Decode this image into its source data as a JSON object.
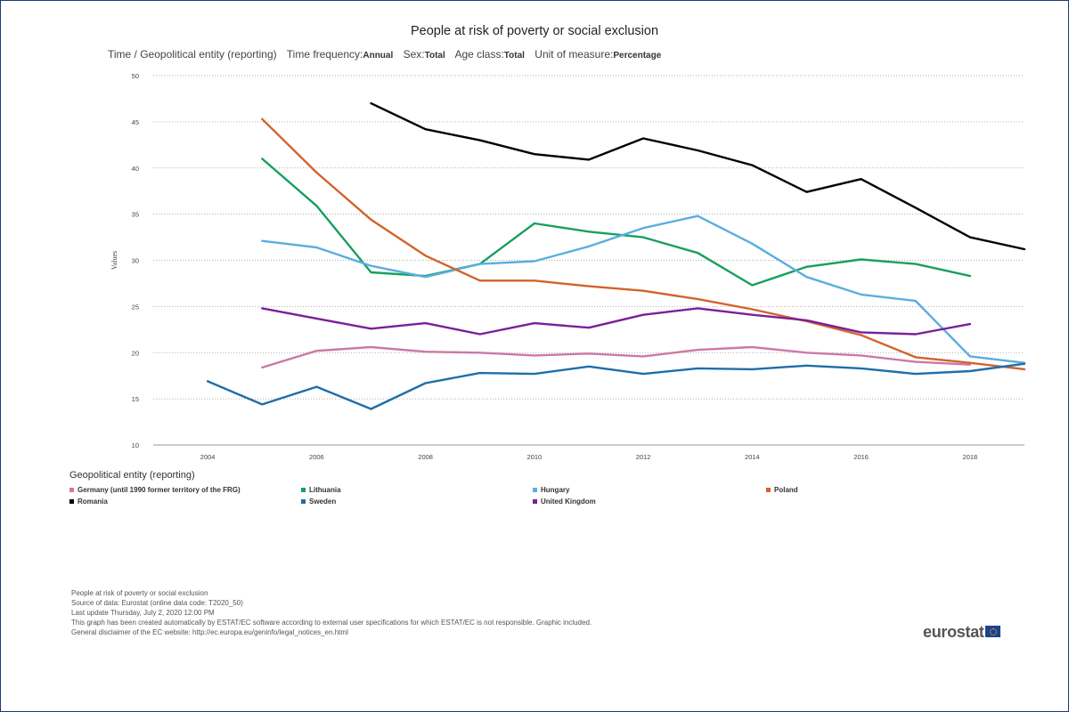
{
  "header": {
    "title": "People at risk of poverty or social exclusion",
    "dims": [
      {
        "label": "Time / Geopolitical entity (reporting)",
        "value": ""
      },
      {
        "label": "Time frequency:",
        "value": "Annual"
      },
      {
        "label": "Sex:",
        "value": "Total"
      },
      {
        "label": "Age class:",
        "value": "Total"
      },
      {
        "label": "Unit of measure:",
        "value": "Percentage"
      }
    ]
  },
  "chart_data": {
    "type": "line",
    "title": "People at risk of poverty or social exclusion",
    "xlabel": "",
    "ylabel": "Values",
    "xlim": [
      2003,
      2019
    ],
    "ylim": [
      10,
      50
    ],
    "yticks": [
      10,
      15,
      20,
      25,
      30,
      35,
      40,
      45,
      50
    ],
    "xticks": [
      2004,
      2006,
      2008,
      2010,
      2012,
      2014,
      2016,
      2018
    ],
    "grid": "horizontal dotted",
    "legend_position": "bottom",
    "legend_title": "Geopolitical entity (reporting)",
    "x": [
      2004,
      2005,
      2006,
      2007,
      2008,
      2009,
      2010,
      2011,
      2012,
      2013,
      2014,
      2015,
      2016,
      2017,
      2018,
      2019
    ],
    "series": [
      {
        "name": "Germany (until 1990 former territory of the FRG)",
        "color": "#cc79a7",
        "values": [
          null,
          18.4,
          20.2,
          20.6,
          20.1,
          20.0,
          19.7,
          19.9,
          19.6,
          20.3,
          20.6,
          20.0,
          19.7,
          19.0,
          18.7,
          null
        ]
      },
      {
        "name": "Lithuania",
        "color": "#17a05d",
        "values": [
          null,
          41.0,
          35.9,
          28.7,
          28.3,
          29.6,
          34.0,
          33.1,
          32.5,
          30.8,
          27.3,
          29.3,
          30.1,
          29.6,
          28.3,
          null
        ]
      },
      {
        "name": "Hungary",
        "color": "#5aaee0",
        "values": [
          null,
          32.1,
          31.4,
          29.4,
          28.2,
          29.6,
          29.9,
          31.5,
          33.5,
          34.8,
          31.8,
          28.2,
          26.3,
          25.6,
          19.6,
          18.9
        ]
      },
      {
        "name": "Poland",
        "color": "#d2632b",
        "values": [
          null,
          45.3,
          39.5,
          34.4,
          30.5,
          27.8,
          27.8,
          27.2,
          26.7,
          25.8,
          24.7,
          23.4,
          21.9,
          19.5,
          18.9,
          18.2
        ]
      },
      {
        "name": "Romania",
        "color": "#000000",
        "values": [
          null,
          null,
          null,
          47.0,
          44.2,
          43.0,
          41.5,
          40.9,
          43.2,
          41.9,
          40.3,
          37.4,
          38.8,
          35.7,
          32.5,
          31.2
        ]
      },
      {
        "name": "Sweden",
        "color": "#1f6ea8",
        "values": [
          16.9,
          14.4,
          16.3,
          13.9,
          16.7,
          17.8,
          17.7,
          18.5,
          17.7,
          18.3,
          18.2,
          18.6,
          18.3,
          17.7,
          18.0,
          18.8
        ]
      },
      {
        "name": "United Kingdom",
        "color": "#7a1f9a",
        "values": [
          null,
          24.8,
          23.7,
          22.6,
          23.2,
          22.0,
          23.2,
          22.7,
          24.1,
          24.8,
          24.1,
          23.5,
          22.2,
          22.0,
          23.1,
          null
        ]
      }
    ]
  },
  "footer": {
    "lines": [
      "People at risk of poverty or social exclusion",
      "Source of data: Eurostat (online data code: T2020_50)",
      "Last update Thursday, July 2, 2020 12:00 PM",
      "This graph has been created automatically by ESTAT/EC software according to external user specifications for which ESTAT/EC is not responsible. Graphic included.",
      "General disclaimer of the EC website: http://ec.europa.eu/geninfo/legal_notices_en.html"
    ]
  },
  "logo": {
    "text": "eurostat"
  }
}
